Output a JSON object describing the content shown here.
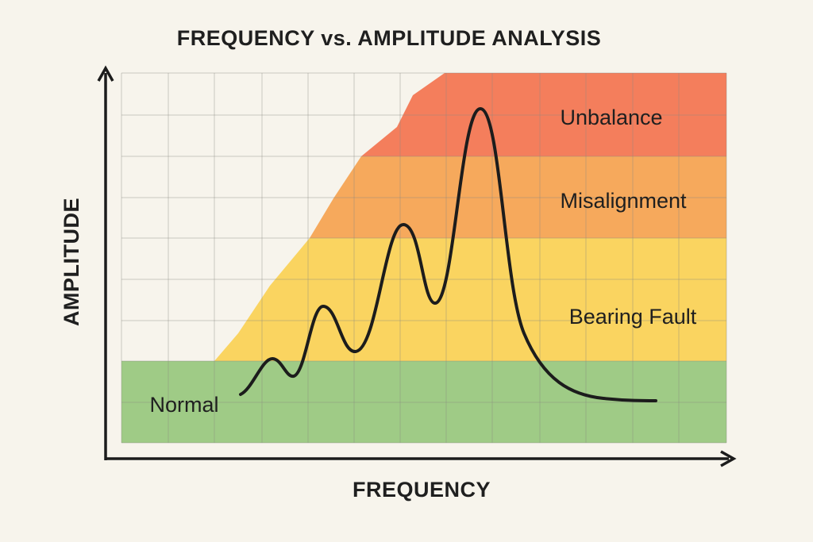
{
  "title": "FREQUENCY vs. AMPLITUDE ANALYSIS",
  "axes": {
    "x_label": "FREQUENCY",
    "y_label": "AMPLITUDE"
  },
  "zones": [
    {
      "label": "Unbalance"
    },
    {
      "label": "Misalignment"
    },
    {
      "label": "Bearing Fault"
    },
    {
      "label": "Normal"
    }
  ]
}
